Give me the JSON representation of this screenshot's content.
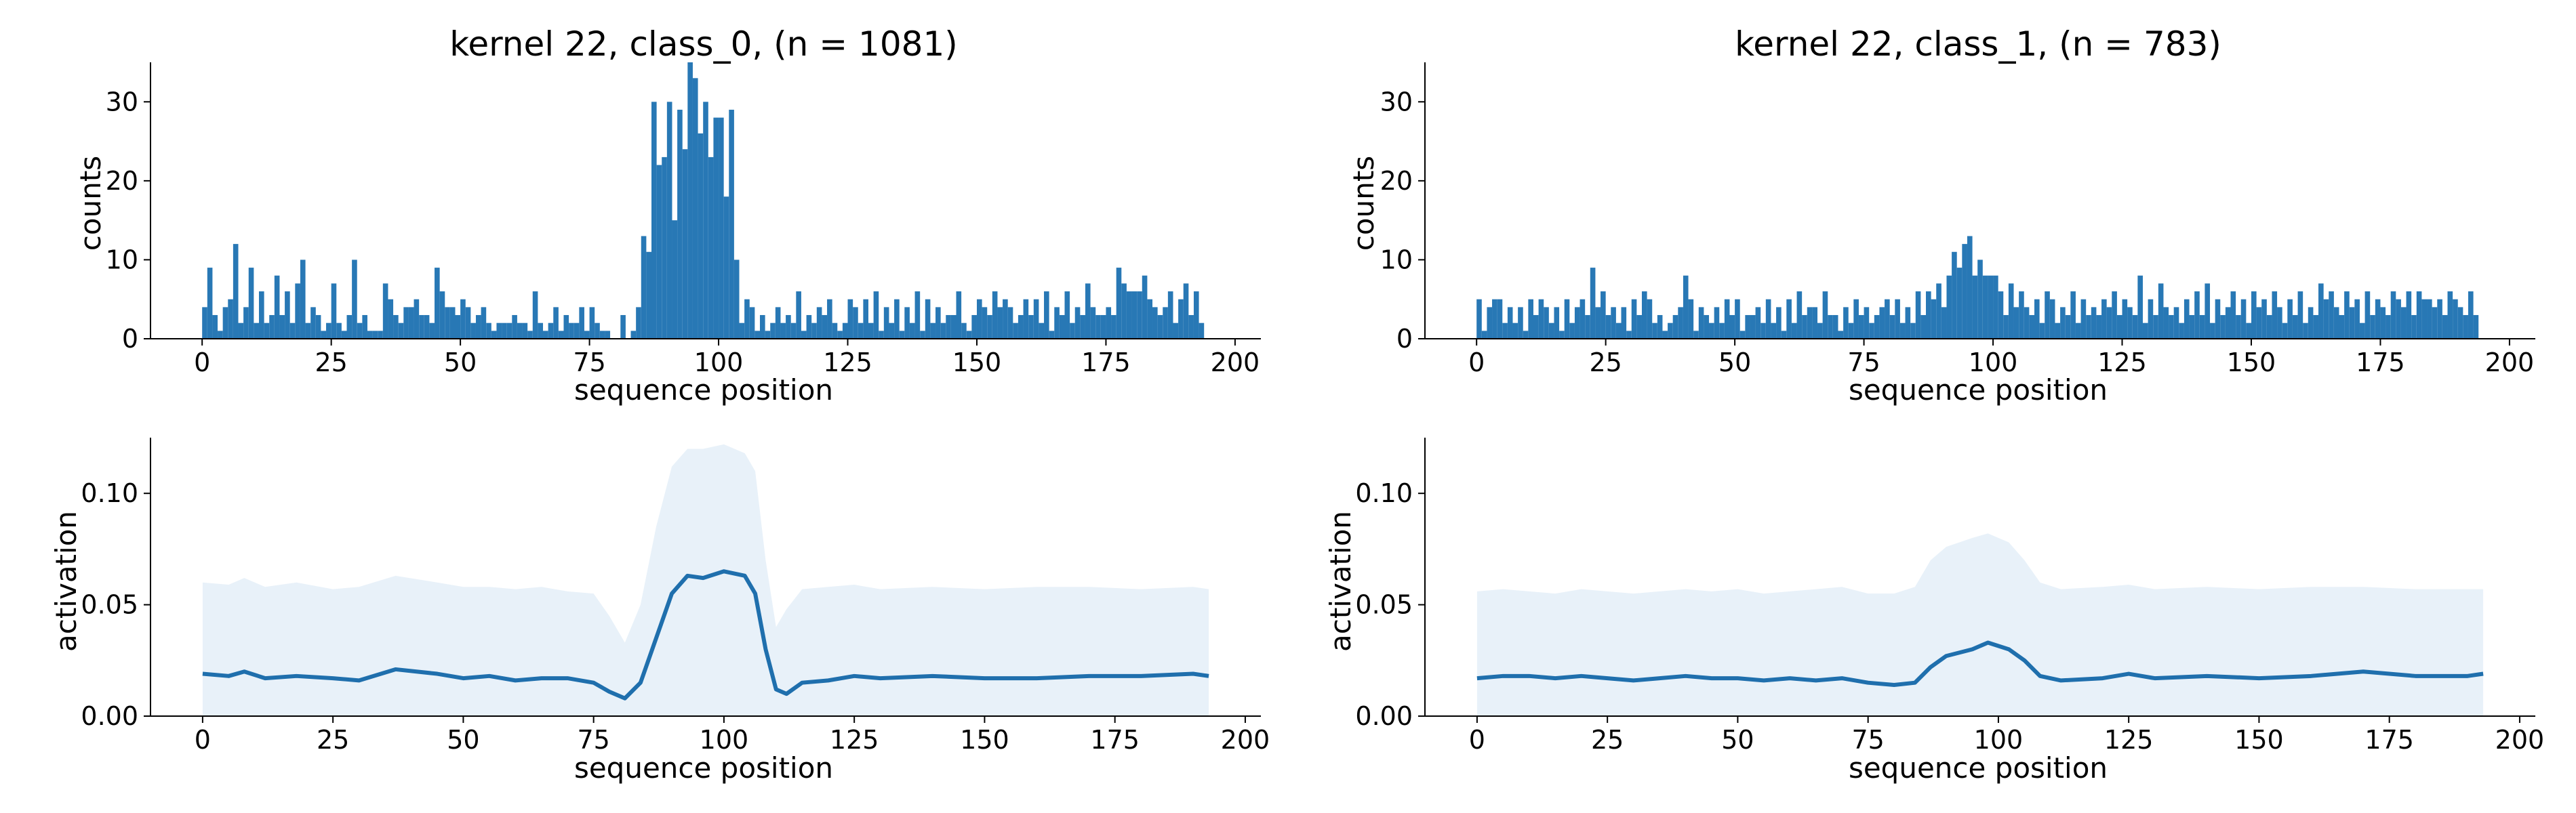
{
  "colors": {
    "bar": "#2878b5",
    "line": "#1f6fad",
    "band": "#e8f1f9",
    "axis": "#000000"
  },
  "chart_data": [
    {
      "type": "bar",
      "title": "kernel 22, class_0, (n = 1081)",
      "xlabel": "sequence position",
      "ylabel": "counts",
      "xlim": [
        -10,
        205
      ],
      "ylim": [
        0,
        35
      ],
      "xticks": [
        0,
        25,
        50,
        75,
        100,
        125,
        150,
        175,
        200
      ],
      "yticks": [
        0,
        10,
        20,
        30
      ],
      "x_start": 0,
      "values": [
        4,
        9,
        3,
        1,
        4,
        5,
        12,
        2,
        4,
        9,
        2,
        6,
        2,
        3,
        8,
        3,
        6,
        2,
        7,
        10,
        2,
        4,
        3,
        1,
        2,
        7,
        2,
        1,
        3,
        10,
        2,
        3,
        1,
        1,
        1,
        7,
        5,
        3,
        2,
        4,
        4,
        5,
        3,
        3,
        2,
        9,
        6,
        4,
        4,
        3,
        5,
        4,
        2,
        3,
        4,
        2,
        1,
        2,
        2,
        2,
        3,
        2,
        2,
        1,
        6,
        2,
        1,
        2,
        4,
        1,
        3,
        2,
        2,
        4,
        1,
        4,
        2,
        1,
        1,
        0,
        0,
        3,
        0,
        1,
        4,
        13,
        11,
        30,
        22,
        23,
        30,
        15,
        29,
        24,
        35,
        33,
        26,
        30,
        23,
        28,
        28,
        18,
        29,
        10,
        2,
        5,
        4,
        1,
        3,
        1,
        2,
        4,
        2,
        3,
        2,
        6,
        1,
        3,
        2,
        4,
        3,
        5,
        2,
        1,
        2,
        5,
        4,
        2,
        5,
        2,
        6,
        1,
        4,
        2,
        5,
        1,
        4,
        2,
        6,
        1,
        5,
        2,
        4,
        2,
        3,
        3,
        6,
        2,
        1,
        3,
        5,
        4,
        3,
        6,
        4,
        5,
        4,
        2,
        3,
        5,
        3,
        5,
        2,
        6,
        1,
        4,
        3,
        6,
        2,
        4,
        3,
        7,
        4,
        3,
        3,
        4,
        3,
        9,
        7,
        6,
        6,
        6,
        8,
        5,
        4,
        3,
        4,
        6,
        2,
        5,
        7,
        3,
        6,
        2
      ],
      "series_stats": null
    },
    {
      "type": "bar",
      "title": "kernel 22, class_1, (n = 783)",
      "xlabel": "sequence position",
      "ylabel": "counts",
      "xlim": [
        -10,
        205
      ],
      "ylim": [
        0,
        35
      ],
      "xticks": [
        0,
        25,
        50,
        75,
        100,
        125,
        150,
        175,
        200
      ],
      "yticks": [
        0,
        10,
        20,
        30
      ],
      "x_start": 0,
      "values": [
        5,
        1,
        4,
        5,
        5,
        2,
        4,
        2,
        4,
        1,
        5,
        3,
        5,
        4,
        2,
        4,
        1,
        5,
        2,
        4,
        5,
        3,
        9,
        4,
        6,
        3,
        4,
        2,
        4,
        1,
        5,
        3,
        6,
        5,
        2,
        3,
        1,
        2,
        3,
        4,
        8,
        5,
        1,
        4,
        3,
        2,
        4,
        2,
        5,
        3,
        5,
        1,
        3,
        3,
        4,
        2,
        5,
        2,
        4,
        1,
        5,
        2,
        6,
        3,
        4,
        4,
        2,
        6,
        3,
        3,
        1,
        4,
        2,
        5,
        3,
        4,
        2,
        3,
        4,
        5,
        3,
        5,
        2,
        4,
        2,
        6,
        3,
        6,
        5,
        7,
        4,
        8,
        11,
        9,
        12,
        13,
        8,
        10,
        8,
        8,
        8,
        6,
        3,
        7,
        4,
        6,
        4,
        3,
        5,
        2,
        6,
        5,
        2,
        4,
        3,
        6,
        2,
        5,
        3,
        4,
        3,
        5,
        4,
        6,
        3,
        5,
        4,
        3,
        8,
        2,
        5,
        3,
        7,
        4,
        3,
        4,
        2,
        5,
        3,
        6,
        3,
        7,
        2,
        5,
        3,
        4,
        6,
        3,
        5,
        2,
        6,
        4,
        5,
        3,
        6,
        4,
        2,
        5,
        3,
        6,
        2,
        4,
        3,
        7,
        5,
        6,
        4,
        3,
        6,
        4,
        5,
        2,
        6,
        3,
        5,
        4,
        3,
        6,
        5,
        4,
        6,
        3,
        6,
        5,
        5,
        4,
        5,
        3,
        6,
        5,
        4,
        3,
        6,
        3
      ],
      "series_stats": null
    },
    {
      "type": "line",
      "title": "",
      "xlabel": "sequence position",
      "ylabel": "activation",
      "xlim": [
        -10,
        203
      ],
      "ylim": [
        0,
        0.125
      ],
      "xticks": [
        0,
        25,
        50,
        75,
        100,
        125,
        150,
        175,
        200
      ],
      "yticks": [
        0.0,
        0.05,
        0.1
      ],
      "ytick_labels": [
        "0.00",
        "0.05",
        "0.10"
      ],
      "band_label": "",
      "points": [
        {
          "x": 0,
          "mean": 0.019,
          "upper": 0.06
        },
        {
          "x": 5,
          "mean": 0.018,
          "upper": 0.059
        },
        {
          "x": 8,
          "mean": 0.02,
          "upper": 0.062
        },
        {
          "x": 12,
          "mean": 0.017,
          "upper": 0.058
        },
        {
          "x": 18,
          "mean": 0.018,
          "upper": 0.06
        },
        {
          "x": 25,
          "mean": 0.017,
          "upper": 0.057
        },
        {
          "x": 30,
          "mean": 0.016,
          "upper": 0.058
        },
        {
          "x": 37,
          "mean": 0.021,
          "upper": 0.063
        },
        {
          "x": 45,
          "mean": 0.019,
          "upper": 0.06
        },
        {
          "x": 50,
          "mean": 0.017,
          "upper": 0.058
        },
        {
          "x": 55,
          "mean": 0.018,
          "upper": 0.058
        },
        {
          "x": 60,
          "mean": 0.016,
          "upper": 0.057
        },
        {
          "x": 65,
          "mean": 0.017,
          "upper": 0.058
        },
        {
          "x": 70,
          "mean": 0.017,
          "upper": 0.056
        },
        {
          "x": 75,
          "mean": 0.015,
          "upper": 0.055
        },
        {
          "x": 78,
          "mean": 0.011,
          "upper": 0.045
        },
        {
          "x": 81,
          "mean": 0.008,
          "upper": 0.033
        },
        {
          "x": 84,
          "mean": 0.015,
          "upper": 0.05
        },
        {
          "x": 87,
          "mean": 0.035,
          "upper": 0.085
        },
        {
          "x": 90,
          "mean": 0.055,
          "upper": 0.112
        },
        {
          "x": 93,
          "mean": 0.063,
          "upper": 0.12
        },
        {
          "x": 96,
          "mean": 0.062,
          "upper": 0.12
        },
        {
          "x": 100,
          "mean": 0.065,
          "upper": 0.122
        },
        {
          "x": 104,
          "mean": 0.063,
          "upper": 0.118
        },
        {
          "x": 106,
          "mean": 0.055,
          "upper": 0.11
        },
        {
          "x": 108,
          "mean": 0.03,
          "upper": 0.07
        },
        {
          "x": 110,
          "mean": 0.012,
          "upper": 0.04
        },
        {
          "x": 112,
          "mean": 0.01,
          "upper": 0.048
        },
        {
          "x": 115,
          "mean": 0.015,
          "upper": 0.057
        },
        {
          "x": 120,
          "mean": 0.016,
          "upper": 0.058
        },
        {
          "x": 125,
          "mean": 0.018,
          "upper": 0.059
        },
        {
          "x": 130,
          "mean": 0.017,
          "upper": 0.057
        },
        {
          "x": 140,
          "mean": 0.018,
          "upper": 0.058
        },
        {
          "x": 150,
          "mean": 0.017,
          "upper": 0.057
        },
        {
          "x": 160,
          "mean": 0.017,
          "upper": 0.058
        },
        {
          "x": 170,
          "mean": 0.018,
          "upper": 0.058
        },
        {
          "x": 180,
          "mean": 0.018,
          "upper": 0.057
        },
        {
          "x": 190,
          "mean": 0.019,
          "upper": 0.058
        },
        {
          "x": 193,
          "mean": 0.018,
          "upper": 0.057
        }
      ]
    },
    {
      "type": "line",
      "title": "",
      "xlabel": "sequence position",
      "ylabel": "activation",
      "xlim": [
        -10,
        203
      ],
      "ylim": [
        0,
        0.125
      ],
      "xticks": [
        0,
        25,
        50,
        75,
        100,
        125,
        150,
        175,
        200
      ],
      "yticks": [
        0.0,
        0.05,
        0.1
      ],
      "ytick_labels": [
        "0.00",
        "0.05",
        "0.10"
      ],
      "band_label": "",
      "points": [
        {
          "x": 0,
          "mean": 0.017,
          "upper": 0.056
        },
        {
          "x": 5,
          "mean": 0.018,
          "upper": 0.057
        },
        {
          "x": 10,
          "mean": 0.018,
          "upper": 0.056
        },
        {
          "x": 15,
          "mean": 0.017,
          "upper": 0.055
        },
        {
          "x": 20,
          "mean": 0.018,
          "upper": 0.057
        },
        {
          "x": 25,
          "mean": 0.017,
          "upper": 0.056
        },
        {
          "x": 30,
          "mean": 0.016,
          "upper": 0.055
        },
        {
          "x": 35,
          "mean": 0.017,
          "upper": 0.056
        },
        {
          "x": 40,
          "mean": 0.018,
          "upper": 0.057
        },
        {
          "x": 45,
          "mean": 0.017,
          "upper": 0.056
        },
        {
          "x": 50,
          "mean": 0.017,
          "upper": 0.057
        },
        {
          "x": 55,
          "mean": 0.016,
          "upper": 0.055
        },
        {
          "x": 60,
          "mean": 0.017,
          "upper": 0.056
        },
        {
          "x": 65,
          "mean": 0.016,
          "upper": 0.057
        },
        {
          "x": 70,
          "mean": 0.017,
          "upper": 0.058
        },
        {
          "x": 75,
          "mean": 0.015,
          "upper": 0.055
        },
        {
          "x": 80,
          "mean": 0.014,
          "upper": 0.055
        },
        {
          "x": 84,
          "mean": 0.015,
          "upper": 0.058
        },
        {
          "x": 87,
          "mean": 0.022,
          "upper": 0.07
        },
        {
          "x": 90,
          "mean": 0.027,
          "upper": 0.076
        },
        {
          "x": 95,
          "mean": 0.03,
          "upper": 0.08
        },
        {
          "x": 98,
          "mean": 0.033,
          "upper": 0.082
        },
        {
          "x": 102,
          "mean": 0.03,
          "upper": 0.078
        },
        {
          "x": 105,
          "mean": 0.025,
          "upper": 0.07
        },
        {
          "x": 108,
          "mean": 0.018,
          "upper": 0.06
        },
        {
          "x": 112,
          "mean": 0.016,
          "upper": 0.057
        },
        {
          "x": 120,
          "mean": 0.017,
          "upper": 0.058
        },
        {
          "x": 125,
          "mean": 0.019,
          "upper": 0.059
        },
        {
          "x": 130,
          "mean": 0.017,
          "upper": 0.057
        },
        {
          "x": 140,
          "mean": 0.018,
          "upper": 0.058
        },
        {
          "x": 150,
          "mean": 0.017,
          "upper": 0.057
        },
        {
          "x": 160,
          "mean": 0.018,
          "upper": 0.058
        },
        {
          "x": 170,
          "mean": 0.02,
          "upper": 0.058
        },
        {
          "x": 180,
          "mean": 0.018,
          "upper": 0.057
        },
        {
          "x": 190,
          "mean": 0.018,
          "upper": 0.057
        },
        {
          "x": 193,
          "mean": 0.019,
          "upper": 0.057
        }
      ]
    }
  ]
}
